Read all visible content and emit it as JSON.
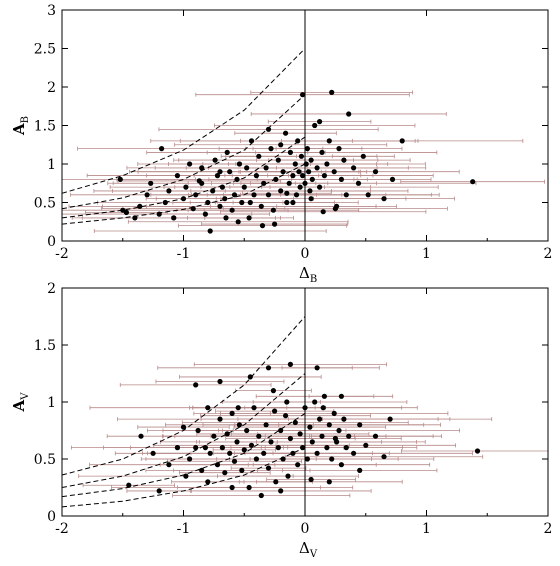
{
  "chart_data": [
    {
      "type": "scatter",
      "xlabel": "Δ",
      "xlabel_sub": "B",
      "ylabel": "A",
      "ylabel_sub": "B",
      "xlim": [
        -2,
        2
      ],
      "ylim": [
        0,
        3
      ],
      "xticks": [
        "-2",
        "-1",
        "0",
        "1",
        "2"
      ],
      "yticks": [
        "0",
        "0.5",
        "1",
        "1.5",
        "2",
        "2.5",
        "3"
      ],
      "grid": false,
      "vertical_line_x": 0,
      "errorbar_color": "#b88a8a",
      "point_color": "#000000",
      "boundary_curves": [
        {
          "style": "dashed",
          "points": [
            [
              -2,
              0.62
            ],
            [
              -1.5,
              0.85
            ],
            [
              -1,
              1.18
            ],
            [
              -0.5,
              1.7
            ],
            [
              0,
              2.5
            ]
          ]
        },
        {
          "style": "dashed",
          "points": [
            [
              -2,
              0.42
            ],
            [
              -1.5,
              0.56
            ],
            [
              -1,
              0.8
            ],
            [
              -0.5,
              1.18
            ],
            [
              0,
              1.9
            ]
          ]
        },
        {
          "style": "dashed",
          "points": [
            [
              -2,
              0.3
            ],
            [
              -1.5,
              0.4
            ],
            [
              -1,
              0.55
            ],
            [
              -0.5,
              0.82
            ],
            [
              0,
              1.35
            ]
          ]
        },
        {
          "style": "dashed",
          "points": [
            [
              -2,
              0.22
            ],
            [
              -1.5,
              0.3
            ],
            [
              -1,
              0.41
            ],
            [
              -0.5,
              0.6
            ],
            [
              0,
              1.0
            ]
          ]
        }
      ],
      "points": [
        [
          -1.52,
          0.8
        ],
        [
          -1.5,
          0.4
        ],
        [
          -1.47,
          0.37
        ],
        [
          -1.4,
          0.3
        ],
        [
          -1.36,
          0.45
        ],
        [
          -1.3,
          0.6
        ],
        [
          -1.27,
          0.75
        ],
        [
          -1.2,
          0.35
        ],
        [
          -1.18,
          1.2
        ],
        [
          -1.15,
          0.5
        ],
        [
          -1.12,
          0.65
        ],
        [
          -1.08,
          0.3
        ],
        [
          -1.05,
          0.85
        ],
        [
          -1.0,
          0.55
        ],
        [
          -0.98,
          0.7
        ],
        [
          -0.95,
          1.0
        ],
        [
          -0.92,
          0.42
        ],
        [
          -0.9,
          0.6
        ],
        [
          -0.87,
          0.78
        ],
        [
          -0.85,
          0.95
        ],
        [
          -0.82,
          0.35
        ],
        [
          -0.8,
          0.5
        ],
        [
          -0.78,
          0.13
        ],
        [
          -0.76,
          0.65
        ],
        [
          -0.74,
          1.05
        ],
        [
          -0.72,
          0.85
        ],
        [
          -0.7,
          0.45
        ],
        [
          -0.68,
          0.7
        ],
        [
          -0.66,
          0.55
        ],
        [
          -0.64,
          1.15
        ],
        [
          -0.62,
          0.9
        ],
        [
          -0.6,
          0.4
        ],
        [
          -0.58,
          0.6
        ],
        [
          -0.56,
          0.8
        ],
        [
          -0.54,
          1.0
        ],
        [
          -0.52,
          0.5
        ],
        [
          -0.5,
          0.7
        ],
        [
          -0.48,
          0.95
        ],
        [
          -0.46,
          0.3
        ],
        [
          -0.44,
          1.3
        ],
        [
          -0.42,
          0.6
        ],
        [
          -0.4,
          0.85
        ],
        [
          -0.38,
          1.1
        ],
        [
          -0.36,
          0.45
        ],
        [
          -0.34,
          0.75
        ],
        [
          -0.32,
          0.95
        ],
        [
          -0.3,
          0.6
        ],
        [
          -0.28,
          1.2
        ],
        [
          -0.26,
          0.4
        ],
        [
          -0.24,
          0.8
        ],
        [
          -0.22,
          1.05
        ],
        [
          -0.2,
          0.65
        ],
        [
          -0.18,
          0.9
        ],
        [
          -0.16,
          1.4
        ],
        [
          -0.15,
          0.5
        ],
        [
          -0.13,
          0.75
        ],
        [
          -0.12,
          1.15
        ],
        [
          -0.1,
          0.85
        ],
        [
          -0.08,
          1.0
        ],
        [
          -0.07,
          0.6
        ],
        [
          -0.06,
          1.3
        ],
        [
          -0.05,
          0.9
        ],
        [
          -0.04,
          0.7
        ],
        [
          -0.03,
          1.1
        ],
        [
          -0.02,
          0.85
        ],
        [
          -0.02,
          1.9
        ],
        [
          0.0,
          0.75
        ],
        [
          0.01,
          1.0
        ],
        [
          0.02,
          1.2
        ],
        [
          0.03,
          0.9
        ],
        [
          0.04,
          0.65
        ],
        [
          0.05,
          1.05
        ],
        [
          0.06,
          0.8
        ],
        [
          0.08,
          1.5
        ],
        [
          0.1,
          0.95
        ],
        [
          0.12,
          0.7
        ],
        [
          0.14,
          1.15
        ],
        [
          0.16,
          0.85
        ],
        [
          0.18,
          1.0
        ],
        [
          0.2,
          1.3
        ],
        [
          0.22,
          1.93
        ],
        [
          0.24,
          0.9
        ],
        [
          0.26,
          0.45
        ],
        [
          0.28,
          1.2
        ],
        [
          0.3,
          0.8
        ],
        [
          0.32,
          1.05
        ],
        [
          0.34,
          0.6
        ],
        [
          0.36,
          1.65
        ],
        [
          0.4,
          0.95
        ],
        [
          0.44,
          0.75
        ],
        [
          0.48,
          1.1
        ],
        [
          0.52,
          0.6
        ],
        [
          0.58,
          0.9
        ],
        [
          0.65,
          0.55
        ],
        [
          0.72,
          0.8
        ],
        [
          0.8,
          1.3
        ],
        [
          1.38,
          0.77
        ],
        [
          -0.55,
          0.25
        ],
        [
          -0.35,
          0.2
        ],
        [
          -0.25,
          0.22
        ],
        [
          -0.1,
          0.5
        ],
        [
          0.15,
          0.38
        ],
        [
          0.25,
          0.42
        ],
        [
          -0.65,
          0.3
        ],
        [
          -0.45,
          0.5
        ],
        [
          -0.15,
          0.62
        ],
        [
          0.05,
          0.55
        ],
        [
          -0.85,
          0.75
        ],
        [
          -0.7,
          0.9
        ],
        [
          -0.3,
          1.45
        ],
        [
          0.12,
          1.55
        ],
        [
          -0.2,
          1.25
        ]
      ]
    },
    {
      "type": "scatter",
      "xlabel": "Δ",
      "xlabel_sub": "V",
      "ylabel": "A",
      "ylabel_sub": "V",
      "xlim": [
        -2,
        2
      ],
      "ylim": [
        0,
        2
      ],
      "xticks": [
        "-2",
        "-1",
        "0",
        "1",
        "2"
      ],
      "yticks": [
        "0",
        "0.5",
        "1",
        "1.5",
        "2"
      ],
      "grid": false,
      "vertical_line_x": 0,
      "errorbar_color": "#b88a8a",
      "point_color": "#000000",
      "boundary_curves": [
        {
          "style": "dashed",
          "points": [
            [
              -2,
              0.36
            ],
            [
              -1.5,
              0.5
            ],
            [
              -1,
              0.75
            ],
            [
              -0.5,
              1.15
            ],
            [
              0,
              1.75
            ]
          ]
        },
        {
          "style": "dashed",
          "points": [
            [
              -2,
              0.25
            ],
            [
              -1.5,
              0.35
            ],
            [
              -1,
              0.52
            ],
            [
              -0.5,
              0.8
            ],
            [
              0,
              1.25
            ]
          ]
        },
        {
          "style": "dashed",
          "points": [
            [
              -2,
              0.17
            ],
            [
              -1.5,
              0.24
            ],
            [
              -1,
              0.36
            ],
            [
              -0.5,
              0.55
            ],
            [
              0,
              0.9
            ]
          ]
        },
        {
          "style": "dashed",
          "points": [
            [
              -2,
              0.08
            ],
            [
              -1.5,
              0.13
            ],
            [
              -1,
              0.22
            ],
            [
              -0.5,
              0.36
            ],
            [
              0,
              0.6
            ]
          ]
        }
      ],
      "points": [
        [
          -1.45,
          0.27
        ],
        [
          -1.35,
          0.7
        ],
        [
          -1.25,
          0.55
        ],
        [
          -1.2,
          0.22
        ],
        [
          -1.12,
          0.45
        ],
        [
          -1.05,
          0.6
        ],
        [
          -0.98,
          0.35
        ],
        [
          -0.95,
          0.5
        ],
        [
          -0.9,
          1.15
        ],
        [
          -0.88,
          0.75
        ],
        [
          -0.85,
          0.4
        ],
        [
          -0.82,
          0.6
        ],
        [
          -0.8,
          0.3
        ],
        [
          -0.78,
          0.55
        ],
        [
          -0.75,
          0.7
        ],
        [
          -0.72,
          0.45
        ],
        [
          -0.7,
          0.85
        ],
        [
          -0.68,
          0.6
        ],
        [
          -0.66,
          0.38
        ],
        [
          -0.64,
          0.72
        ],
        [
          -0.62,
          0.55
        ],
        [
          -0.6,
          0.9
        ],
        [
          -0.58,
          0.48
        ],
        [
          -0.56,
          0.65
        ],
        [
          -0.54,
          0.8
        ],
        [
          -0.52,
          0.4
        ],
        [
          -0.5,
          0.58
        ],
        [
          -0.48,
          0.75
        ],
        [
          -0.46,
          0.25
        ],
        [
          -0.44,
          0.62
        ],
        [
          -0.42,
          0.95
        ],
        [
          -0.4,
          0.5
        ],
        [
          -0.38,
          0.7
        ],
        [
          -0.36,
          0.18
        ],
        [
          -0.34,
          0.55
        ],
        [
          -0.32,
          0.8
        ],
        [
          -0.3,
          0.42
        ],
        [
          -0.28,
          0.65
        ],
        [
          -0.26,
          1.1
        ],
        [
          -0.24,
          0.3
        ],
        [
          -0.22,
          0.6
        ],
        [
          -0.2,
          0.75
        ],
        [
          -0.18,
          0.5
        ],
        [
          -0.16,
          0.88
        ],
        [
          -0.14,
          0.35
        ],
        [
          -0.12,
          0.68
        ],
        [
          -0.1,
          0.55
        ],
        [
          -0.08,
          0.82
        ],
        [
          -0.06,
          0.45
        ],
        [
          -0.04,
          0.72
        ],
        [
          -0.02,
          0.6
        ],
        [
          0.0,
          0.95
        ],
        [
          0.02,
          0.5
        ],
        [
          0.04,
          0.78
        ],
        [
          0.06,
          0.65
        ],
        [
          0.08,
          1.0
        ],
        [
          0.1,
          0.55
        ],
        [
          0.12,
          0.85
        ],
        [
          0.14,
          0.7
        ],
        [
          0.16,
          1.05
        ],
        [
          0.18,
          0.6
        ],
        [
          0.2,
          0.8
        ],
        [
          0.22,
          0.5
        ],
        [
          0.24,
          0.9
        ],
        [
          0.26,
          0.65
        ],
        [
          0.28,
          0.75
        ],
        [
          0.3,
          0.45
        ],
        [
          0.32,
          0.85
        ],
        [
          0.34,
          0.6
        ],
        [
          0.36,
          0.7
        ],
        [
          0.4,
          0.55
        ],
        [
          0.45,
          0.8
        ],
        [
          0.5,
          0.62
        ],
        [
          0.58,
          0.7
        ],
        [
          0.65,
          0.52
        ],
        [
          0.7,
          0.85
        ],
        [
          1.42,
          0.57
        ],
        [
          -0.45,
          1.22
        ],
        [
          -0.3,
          1.3
        ],
        [
          -0.12,
          1.33
        ],
        [
          0.1,
          1.3
        ],
        [
          -0.7,
          1.18
        ],
        [
          0.2,
          0.3
        ],
        [
          -0.6,
          0.25
        ],
        [
          -0.2,
          0.22
        ],
        [
          0.05,
          0.32
        ],
        [
          -0.9,
          0.6
        ],
        [
          -1.0,
          0.78
        ],
        [
          -0.55,
          0.95
        ],
        [
          0.15,
          0.95
        ],
        [
          -0.25,
          0.92
        ],
        [
          0.3,
          1.05
        ],
        [
          -0.8,
          0.95
        ],
        [
          0.45,
          0.4
        ],
        [
          -0.15,
          1.0
        ],
        [
          0.25,
          0.68
        ]
      ]
    }
  ]
}
